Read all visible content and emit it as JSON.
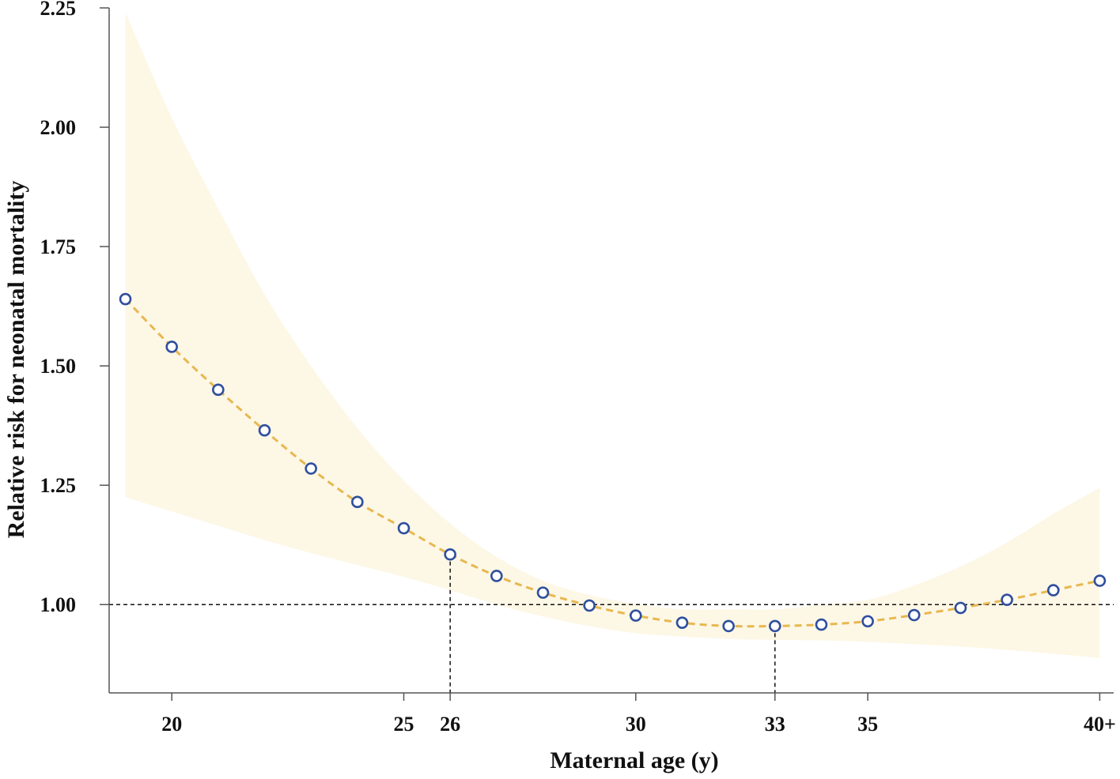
{
  "chart_data": {
    "type": "line",
    "title": "",
    "xlabel": "Maternal age (y)",
    "ylabel": "Relative risk for neonatal mortality",
    "xlim": [
      18.65,
      40.3
    ],
    "ylim": [
      0.815,
      2.25
    ],
    "x_ticks": [
      {
        "value": 20,
        "label": "20"
      },
      {
        "value": 25,
        "label": "25"
      },
      {
        "value": 26,
        "label": "26"
      },
      {
        "value": 30,
        "label": "30"
      },
      {
        "value": 33,
        "label": "33"
      },
      {
        "value": 35,
        "label": "35"
      },
      {
        "value": 40,
        "label": "40+"
      }
    ],
    "y_ticks": [
      {
        "value": 1.0,
        "label": "1.00"
      },
      {
        "value": 1.25,
        "label": "1.25"
      },
      {
        "value": 1.5,
        "label": "1.50"
      },
      {
        "value": 1.75,
        "label": "1.75"
      },
      {
        "value": 2.0,
        "label": "2.00"
      },
      {
        "value": 2.25,
        "label": "2.25"
      }
    ],
    "reference_line_y": 1.0,
    "reference_markers": [
      {
        "x": 26,
        "y": 1.105
      },
      {
        "x": 33,
        "y": 0.955
      }
    ],
    "series": [
      {
        "x": [
          19,
          20,
          21,
          22,
          23,
          24,
          25,
          26,
          27,
          28,
          29,
          30,
          31,
          32,
          33,
          34,
          35,
          36,
          37,
          38,
          39,
          40
        ],
        "y": [
          1.64,
          1.54,
          1.45,
          1.365,
          1.285,
          1.215,
          1.16,
          1.105,
          1.06,
          1.025,
          0.998,
          0.977,
          0.962,
          0.955,
          0.955,
          0.958,
          0.965,
          0.978,
          0.993,
          1.01,
          1.03,
          1.05
        ],
        "ci_upper": [
          2.24,
          2.02,
          1.83,
          1.65,
          1.5,
          1.37,
          1.26,
          1.17,
          1.1,
          1.05,
          1.02,
          1.002,
          0.99,
          0.99,
          0.99,
          1.0,
          1.01,
          1.04,
          1.08,
          1.13,
          1.19,
          1.245
        ],
        "ci_lower": [
          1.225,
          1.195,
          1.165,
          1.135,
          1.108,
          1.083,
          1.058,
          1.03,
          1.0,
          0.975,
          0.955,
          0.94,
          0.933,
          0.928,
          0.926,
          0.925,
          0.922,
          0.917,
          0.912,
          0.905,
          0.897,
          0.888
        ]
      }
    ],
    "grid": false,
    "legend": "none",
    "colors": {
      "line": "#e7b84f",
      "ci_band": "#fdf7e6",
      "marker": "#2f4f9e",
      "axis": "#555555",
      "reference": "#111111"
    }
  }
}
